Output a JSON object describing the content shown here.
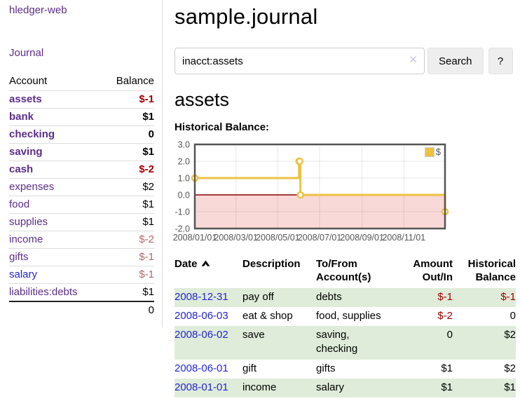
{
  "colors": {
    "purple": "#5b2d8a",
    "blue": "#2323dc",
    "negative-strong": "#a40000",
    "negative-muted": "#b36666",
    "row-green": "#dfecd9",
    "gold": "#edc240"
  },
  "app": {
    "title": "hledger-web"
  },
  "sidebar": {
    "nav_journal": "Journal",
    "accounts": {
      "header_account": "Account",
      "header_balance": "Balance",
      "rows": [
        {
          "name": "assets",
          "balance": "$-1",
          "indent": 1,
          "bold": true,
          "balance_style": "negative-strong"
        },
        {
          "name": "bank",
          "balance": "$1",
          "indent": 2,
          "bold": true,
          "balance_style": "normal"
        },
        {
          "name": "checking",
          "balance": "0",
          "indent": 3,
          "bold": true,
          "balance_style": "normal"
        },
        {
          "name": "saving",
          "balance": "$1",
          "indent": 3,
          "bold": true,
          "balance_style": "normal"
        },
        {
          "name": "cash",
          "balance": "$-2",
          "indent": 2,
          "bold": true,
          "balance_style": "negative-strong"
        },
        {
          "name": "expenses",
          "balance": "$2",
          "indent": 1,
          "bold": false,
          "balance_style": "normal"
        },
        {
          "name": "food",
          "balance": "$1",
          "indent": 2,
          "bold": false,
          "balance_style": "normal"
        },
        {
          "name": "supplies",
          "balance": "$1",
          "indent": 2,
          "bold": false,
          "balance_style": "normal"
        },
        {
          "name": "income",
          "balance": "$-2",
          "indent": 1,
          "bold": false,
          "balance_style": "negative-muted"
        },
        {
          "name": "gifts",
          "balance": "$-1",
          "indent": 2,
          "bold": false,
          "balance_style": "negative-muted"
        },
        {
          "name": "salary",
          "balance": "$-1",
          "indent": 2,
          "bold": false,
          "balance_style": "negative-muted",
          "link_style": "blue"
        },
        {
          "name": "liabilities:debts",
          "balance": "$1",
          "indent": 1,
          "bold": false,
          "balance_style": "normal"
        }
      ],
      "total": "0"
    }
  },
  "main": {
    "title": "sample.journal",
    "search": {
      "value": "inacct:assets",
      "clear_icon": "✕",
      "search_button": "Search",
      "help_button": "?"
    },
    "account_heading": "assets",
    "chart_heading": "Historical Balance:"
  },
  "chart_data": {
    "type": "line",
    "step": true,
    "title": "Historical Balance",
    "series": [
      {
        "name": "$",
        "color": "#edc240",
        "points": [
          [
            "2008-01-01",
            1
          ],
          [
            "2008-06-01",
            2
          ],
          [
            "2008-06-02",
            2
          ],
          [
            "2008-06-03",
            0
          ],
          [
            "2008-12-31",
            -1
          ]
        ]
      }
    ],
    "x_start": "2008-01-01",
    "x_end": "2008-12-31",
    "ylim": [
      -2,
      3
    ],
    "ytick_values": [
      3,
      2,
      1,
      0,
      -1,
      -2
    ],
    "yticks": [
      "3.0",
      "2.0",
      "1.0",
      "0.0",
      "-1.0",
      "-2.0"
    ],
    "xticks": [
      {
        "label": "2008/01/01",
        "date": "2008-01-01"
      },
      {
        "label": "2008/03/01",
        "date": "2008-03-01"
      },
      {
        "label": "2008/05/01",
        "date": "2008-05-01"
      },
      {
        "label": "2008/07/01",
        "date": "2008-07-01"
      },
      {
        "label": "2008/09/01",
        "date": "2008-09-01"
      },
      {
        "label": "2008/11/01",
        "date": "2008-11-01"
      }
    ],
    "legend": {
      "label": "$",
      "position": "top-right"
    },
    "negative_region": {
      "from": -2,
      "to": 0,
      "color": "#f9d9d7"
    },
    "zero_line_color": "#8b0000",
    "grid": true
  },
  "register": {
    "headers": {
      "date": "Date",
      "description": "Description",
      "accounts": "To/From Account(s)",
      "amount": "Amount Out/In",
      "balance": "Historical Balance"
    },
    "rows": [
      {
        "date": "2008-12-31",
        "description": "pay off",
        "accounts": "debts",
        "amount": "$-1",
        "balance": "$-1",
        "amount_style": "negative",
        "balance_style": "negative"
      },
      {
        "date": "2008-06-03",
        "description": "eat & shop",
        "accounts": "food, supplies",
        "amount": "$-2",
        "balance": "0",
        "amount_style": "negative",
        "balance_style": "normal"
      },
      {
        "date": "2008-06-02",
        "description": "save",
        "accounts": "saving, checking",
        "amount": "0",
        "balance": "$2",
        "amount_style": "normal",
        "balance_style": "normal"
      },
      {
        "date": "2008-06-01",
        "description": "gift",
        "accounts": "gifts",
        "amount": "$1",
        "balance": "$2",
        "amount_style": "normal",
        "balance_style": "normal"
      },
      {
        "date": "2008-01-01",
        "description": "income",
        "accounts": "salary",
        "amount": "$1",
        "balance": "$1",
        "amount_style": "normal",
        "balance_style": "normal"
      }
    ]
  }
}
